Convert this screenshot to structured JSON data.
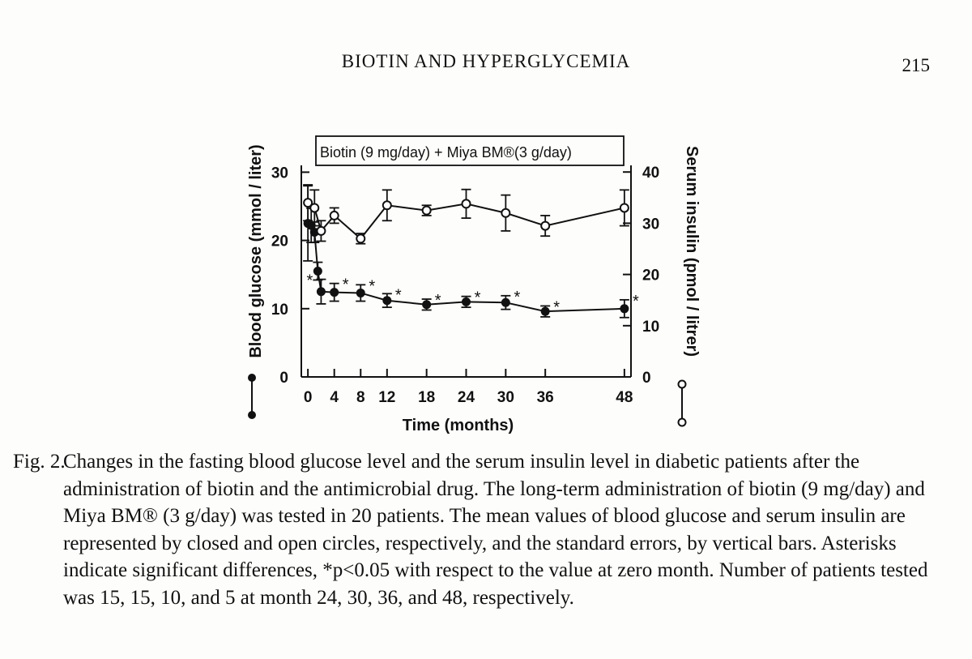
{
  "page": {
    "running_title": "BIOTIN AND HYPERGLYCEMIA",
    "page_number": "215"
  },
  "figure": {
    "caption_label": "Fig. 2.",
    "caption_text": "Changes in the fasting blood glucose level and the serum insulin level in diabetic patients after the administration of biotin and the antimicrobial drug. The long-term administration of biotin (9 mg/day) and Miya BM® (3 g/day) was tested in 20 patients. The mean values of blood glucose and serum insulin are represented by closed and open circles, respectively, and the standard errors, by vertical bars. Asterisks indicate significant differences, *p<0.05 with respect to the value at zero month. Number of patients tested was 15, 15, 10, and 5 at month 24, 30, 36, and 48, respectively."
  },
  "chart_data": {
    "type": "line",
    "legend_box": "Biotin (9 mg/day) + Miya BM®(3 g/day)",
    "xlabel": "Time (months)",
    "ylabel_left": "Blood glucose (mmol / liter)",
    "ylabel_right": "Serum insulin (pmol / litrer)",
    "x_ticks": [
      0,
      4,
      8,
      12,
      18,
      24,
      30,
      36,
      48
    ],
    "x_tick_labels": [
      "0",
      "4",
      "8",
      "12",
      "18",
      "24",
      "30",
      "36",
      "48"
    ],
    "xlim": [
      -1,
      49
    ],
    "y_left_ticks": [
      0,
      10,
      20,
      30
    ],
    "y_left_lim": [
      0,
      31
    ],
    "y_right_ticks": [
      0,
      10,
      20,
      30,
      40
    ],
    "y_right_lim": [
      0,
      41.3
    ],
    "series": [
      {
        "name": "Blood glucose",
        "axis": "left",
        "marker": "filled",
        "x": [
          0,
          0.5,
          1,
          1.5,
          2,
          4,
          8,
          12,
          18,
          24,
          30,
          36,
          48
        ],
        "y": [
          22.5,
          22.2,
          21.2,
          15.5,
          12.5,
          12.4,
          12.3,
          11.2,
          10.6,
          11.0,
          10.9,
          9.6,
          10.0
        ],
        "err": [
          5.5,
          2.5,
          1.5,
          1.3,
          1.8,
          1.3,
          1.2,
          1.0,
          0.8,
          0.8,
          1.0,
          0.8,
          1.3
        ],
        "significant": [
          false,
          false,
          false,
          false,
          true,
          true,
          true,
          true,
          true,
          true,
          true,
          true,
          true
        ]
      },
      {
        "name": "Serum insulin",
        "axis": "right",
        "marker": "open",
        "x": [
          0,
          1,
          2,
          4,
          8,
          12,
          18,
          24,
          30,
          36,
          48
        ],
        "y": [
          34,
          33.0,
          28.5,
          31.5,
          27.0,
          33.5,
          32.5,
          33.8,
          32.0,
          29.5,
          33.0
        ],
        "err": [
          3.5,
          3.5,
          2.0,
          1.5,
          1.0,
          3.0,
          1.0,
          2.8,
          3.5,
          2.0,
          3.5
        ]
      }
    ]
  }
}
